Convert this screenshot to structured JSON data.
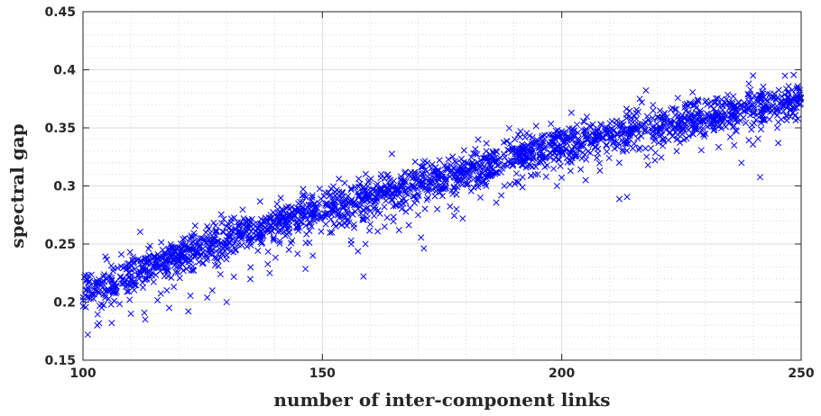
{
  "chart_data": {
    "type": "scatter",
    "title": "",
    "xlabel": "number of inter-component links",
    "ylabel": "spectral gap",
    "xlim": [
      100,
      250
    ],
    "ylim": [
      0.15,
      0.45
    ],
    "x_ticks": [
      100,
      150,
      200,
      250
    ],
    "y_ticks": [
      0.15,
      0.2,
      0.25,
      0.3,
      0.35,
      0.4,
      0.45
    ],
    "x_tick_labels": [
      "100",
      "150",
      "200",
      "250"
    ],
    "y_tick_labels": [
      "0.15",
      "0.2",
      "0.25",
      "0.3",
      "0.35",
      "0.4",
      "0.45"
    ],
    "grid": true,
    "minor_grid": true,
    "marker": "x",
    "color": "#0000ff",
    "trend": {
      "x": [
        100,
        125,
        150,
        175,
        200,
        225,
        250
      ],
      "y": [
        0.208,
        0.248,
        0.28,
        0.307,
        0.335,
        0.356,
        0.375
      ]
    },
    "lower_outliers": {
      "x": [
        101,
        103,
        106,
        110,
        113,
        118,
        122,
        127,
        130,
        135,
        139,
        143,
        148,
        152,
        156,
        159,
        163,
        166,
        170,
        174,
        178,
        183,
        188,
        195,
        199,
        205,
        212,
        218,
        224,
        230,
        236,
        245
      ],
      "y": [
        0.172,
        0.18,
        0.182,
        0.19,
        0.185,
        0.195,
        0.192,
        0.21,
        0.2,
        0.23,
        0.225,
        0.245,
        0.24,
        0.26,
        0.253,
        0.25,
        0.265,
        0.262,
        0.275,
        0.28,
        0.28,
        0.29,
        0.3,
        0.31,
        0.3,
        0.305,
        0.32,
        0.318,
        0.33,
        0.345,
        0.335,
        0.35
      ]
    }
  }
}
